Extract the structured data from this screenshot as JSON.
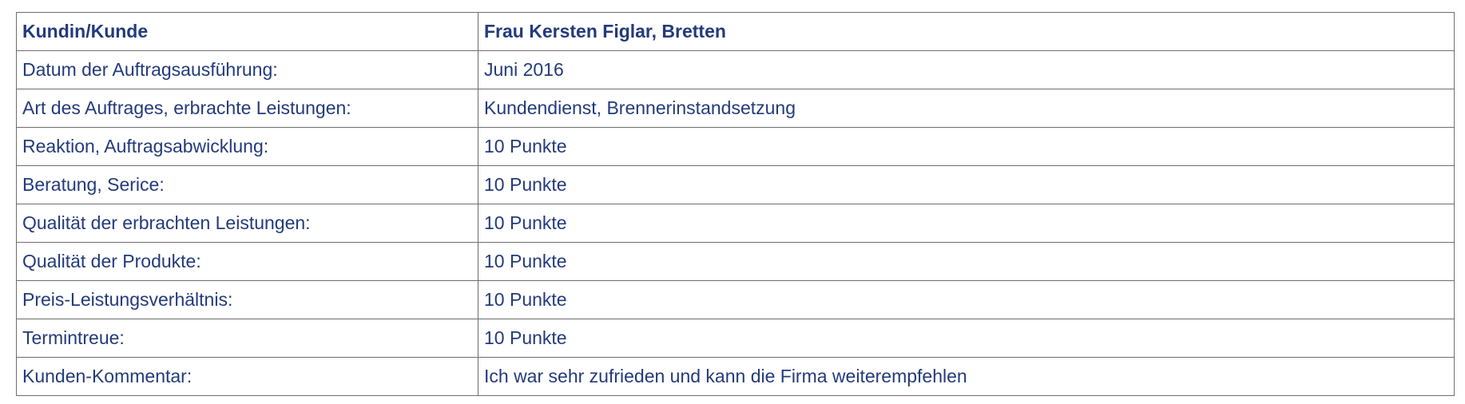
{
  "header": {
    "label": "Kundin/Kunde",
    "value": "Frau Kersten Figlar, Bretten"
  },
  "rows": [
    {
      "label": "Datum der Auftragsausführung:",
      "value": "Juni 2016"
    },
    {
      "label": "Art des Auftrages, erbrachte Leistungen:",
      "value": "Kundendienst, Brennerinstandsetzung"
    },
    {
      "label": "Reaktion, Auftragsabwicklung:",
      "value": "10 Punkte"
    },
    {
      "label": "Beratung, Serice:",
      "value": "10 Punkte"
    },
    {
      "label": "Qualität der erbrachten Leistungen:",
      "value": "10 Punkte"
    },
    {
      "label": "Qualität der Produkte:",
      "value": "10 Punkte"
    },
    {
      "label": "Preis-Leistungsverhältnis:",
      "value": "10 Punkte"
    },
    {
      "label": "Termintreue:",
      "value": "10 Punkte"
    },
    {
      "label": "Kunden-Kommentar:",
      "value": "Ich war sehr zufrieden und kann die Firma weiterempfehlen"
    }
  ],
  "colors": {
    "text": "#233a7c",
    "border": "#6e6e6e"
  }
}
